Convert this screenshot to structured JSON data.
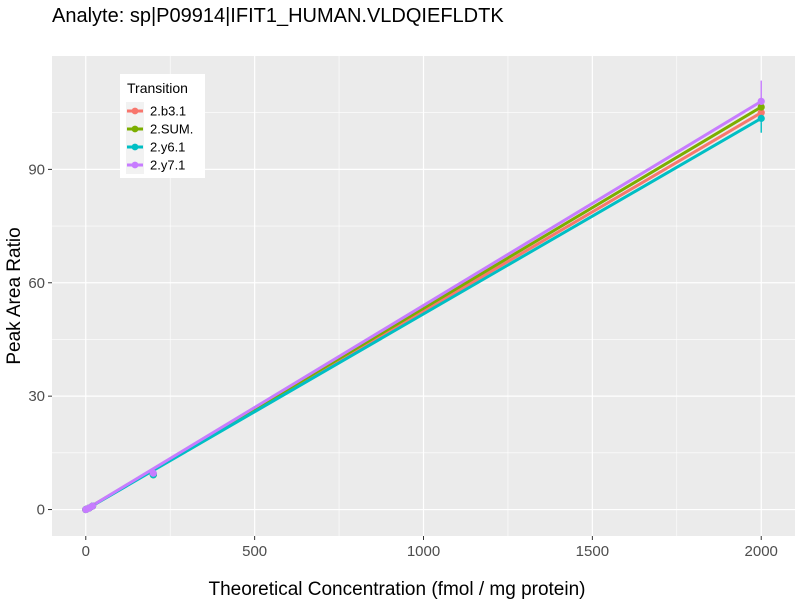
{
  "chart_data": {
    "type": "line",
    "title": "Analyte: sp|P09914|IFIT1_HUMAN.VLDQIEFLDTK",
    "xlabel": "Theoretical Concentration (fmol / mg protein)",
    "ylabel": "Peak Area Ratio",
    "xlim": [
      -100,
      2100
    ],
    "ylim": [
      -7,
      120
    ],
    "x_ticks": [
      0,
      500,
      1000,
      1500,
      2000
    ],
    "x_tick_labels": [
      "0",
      "500",
      "1000",
      "1500",
      "2000"
    ],
    "y_ticks": [
      0,
      30,
      60,
      90
    ],
    "y_tick_labels": [
      "0",
      "30",
      "60",
      "90"
    ],
    "grid": true,
    "legend": {
      "title": "Transition",
      "position": "top-left-inside"
    },
    "series": [
      {
        "name": "2.b3.1",
        "color": "#F8766D",
        "x": [
          0,
          2,
          10,
          20,
          200,
          2000
        ],
        "y": [
          0.0,
          0.1,
          0.4,
          0.9,
          9.3,
          105.0
        ],
        "error": [
          0,
          0,
          0,
          0,
          0.6,
          2.0
        ],
        "fit_end": 105.0
      },
      {
        "name": "2.SUM.",
        "color": "#7CAE00",
        "x": [
          0,
          2,
          10,
          20,
          200,
          2000
        ],
        "y": [
          0.0,
          0.1,
          0.4,
          0.9,
          9.2,
          106.5
        ],
        "error": [
          0,
          0,
          0,
          0,
          0.6,
          2.5
        ],
        "fit_end": 106.5
      },
      {
        "name": "2.y6.1",
        "color": "#00BFC4",
        "x": [
          0,
          2,
          10,
          20,
          200,
          2000
        ],
        "y": [
          0.0,
          0.1,
          0.4,
          0.9,
          9.2,
          103.5
        ],
        "error": [
          0,
          0,
          0,
          0,
          0.6,
          3.8
        ],
        "fit_end": 103.5
      },
      {
        "name": "2.y7.1",
        "color": "#C77CFF",
        "x": [
          0,
          2,
          10,
          20,
          200,
          2000
        ],
        "y": [
          0.0,
          0.1,
          0.4,
          0.9,
          9.6,
          108.0
        ],
        "error": [
          0,
          0,
          0,
          0,
          0.6,
          5.5
        ],
        "fit_end": 108.0
      }
    ]
  }
}
